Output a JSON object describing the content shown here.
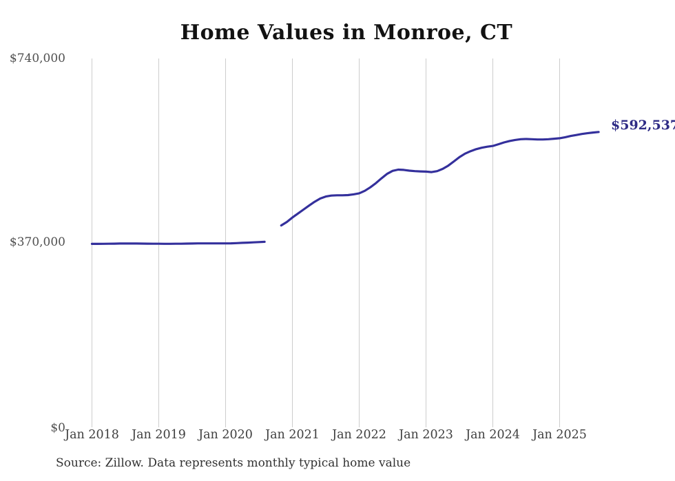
{
  "chart_data": {
    "type": "line",
    "title": "Home Values in Monroe, CT",
    "source_note": "Source: Zillow. Data represents monthly typical home value",
    "end_label": "$592,537",
    "end_value": 592537,
    "xlabel": "",
    "ylabel": "",
    "ylim": [
      0,
      740000
    ],
    "yticks": [
      740000,
      370000,
      0
    ],
    "y_tick_labels": [
      "$740,000",
      "$370,000",
      "$0"
    ],
    "x_tick_labels": [
      "Jan 2018",
      "Jan 2019",
      "Jan 2020",
      "Jan 2021",
      "Jan 2022",
      "Jan 2023",
      "Jan 2024",
      "Jan 2025"
    ],
    "x_start": "Jan 2018",
    "x_end": "Aug 2025",
    "frequency": "monthly",
    "missing_months": [
      "Sep 2020",
      "Oct 2020"
    ],
    "grid": true,
    "legend": "none",
    "colors": {
      "line": "#34309c",
      "grid": "#cccccc",
      "end_label": "#2e2b85"
    },
    "series": [
      {
        "name": "Typical home value",
        "values": [
          368000,
          368000,
          368200,
          368400,
          368500,
          368700,
          368800,
          368800,
          368700,
          368600,
          368500,
          368400,
          368300,
          368200,
          368200,
          368300,
          368400,
          368600,
          368800,
          369000,
          369100,
          369100,
          369000,
          369000,
          369000,
          369200,
          369600,
          370100,
          370600,
          371100,
          371600,
          372200,
          null,
          null,
          405000,
          412000,
          421000,
          429000,
          437000,
          445000,
          452500,
          459000,
          463000,
          465000,
          465500,
          465500,
          466000,
          467500,
          469500,
          474500,
          481500,
          490000,
          499500,
          508500,
          514500,
          517000,
          516500,
          515000,
          514000,
          513500,
          513000,
          512000,
          514000,
          518500,
          525000,
          533500,
          542000,
          549000,
          554000,
          558000,
          561000,
          563000,
          564500,
          568000,
          571500,
          574500,
          576500,
          578000,
          578500,
          578000,
          577500,
          577500,
          578000,
          579000,
          580000,
          582000,
          584500,
          586500,
          588500,
          590000,
          591500,
          592537
        ]
      }
    ]
  }
}
